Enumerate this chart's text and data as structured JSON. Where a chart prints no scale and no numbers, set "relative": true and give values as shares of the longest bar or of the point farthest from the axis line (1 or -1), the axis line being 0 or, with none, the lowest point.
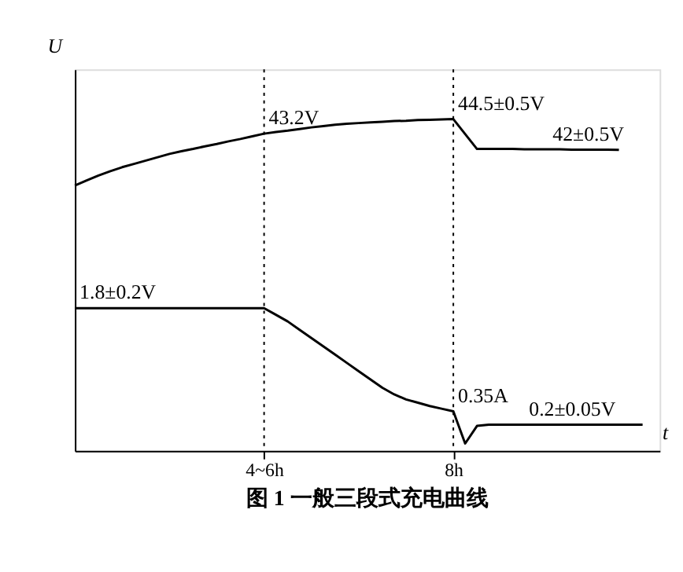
{
  "chart_data": {
    "type": "line",
    "relative": true,
    "xlabel": "t",
    "ylabel": "U",
    "categories": [
      null,
      null,
      null,
      null,
      null,
      null,
      null,
      null,
      null,
      null,
      null,
      null,
      null,
      null,
      null,
      null,
      "4~6h",
      null,
      null,
      null,
      null,
      null,
      null,
      null,
      null,
      null,
      null,
      null,
      null,
      null,
      null,
      null,
      "8h",
      null,
      null,
      null,
      null,
      null,
      null,
      null,
      null,
      null,
      null,
      null,
      null,
      null,
      null,
      null,
      null
    ],
    "tick_labels": "x",
    "grid": false,
    "marker": "none",
    "line_style": "solid",
    "series": [
      {
        "color": "#000000",
        "values": [
          0.8,
          0.815,
          0.83,
          0.843,
          0.855,
          0.865,
          0.875,
          0.885,
          0.895,
          0.903,
          0.91,
          0.918,
          0.925,
          0.933,
          0.94,
          0.948,
          0.956,
          0.961,
          0.965,
          0.97,
          0.975,
          0.979,
          0.983,
          0.986,
          0.988,
          0.99,
          0.992,
          0.994,
          0.995,
          0.997,
          0.998,
          0.999,
          1.0,
          0.955,
          0.91,
          0.91,
          0.91,
          0.91,
          0.909,
          0.909,
          0.909,
          0.909,
          0.908,
          0.908,
          0.908,
          0.908,
          0.907,
          null,
          null
        ]
      },
      {
        "color": "#000000",
        "values": [
          0.43,
          0.43,
          0.43,
          0.43,
          0.43,
          0.43,
          0.43,
          0.43,
          0.43,
          0.43,
          0.43,
          0.43,
          0.43,
          0.43,
          0.43,
          0.43,
          0.43,
          0.41,
          0.39,
          0.365,
          0.34,
          0.315,
          0.29,
          0.265,
          0.24,
          0.215,
          0.19,
          0.17,
          0.155,
          0.145,
          0.135,
          0.127,
          0.119,
          0.022,
          0.075,
          0.079,
          0.079,
          0.079,
          0.079,
          0.079,
          0.079,
          0.079,
          0.079,
          0.079,
          0.079,
          0.079,
          0.079,
          0.079,
          0.079
        ]
      }
    ],
    "ref_lines": [
      {
        "axis": "x",
        "value": "4~6h",
        "line_style": "dotted",
        "color": "#000000"
      },
      {
        "axis": "x",
        "value": "8h",
        "line_style": "dotted",
        "color": "#000000"
      }
    ],
    "annotations": [
      {
        "text": "43.2V",
        "x": "4~6h",
        "y": 0.956
      },
      {
        "text": "44.5±0.5V",
        "x": "8h",
        "y": 1.0
      },
      {
        "text": "42±0.5V",
        "y": 0.907
      },
      {
        "text": "1.8±0.2V",
        "y": 0.43
      },
      {
        "text": "0.35A",
        "x": "8h",
        "y": 0.119
      },
      {
        "text": "0.2±0.05V",
        "y": 0.079
      },
      "图 1    一般三段式充电曲线"
    ]
  }
}
